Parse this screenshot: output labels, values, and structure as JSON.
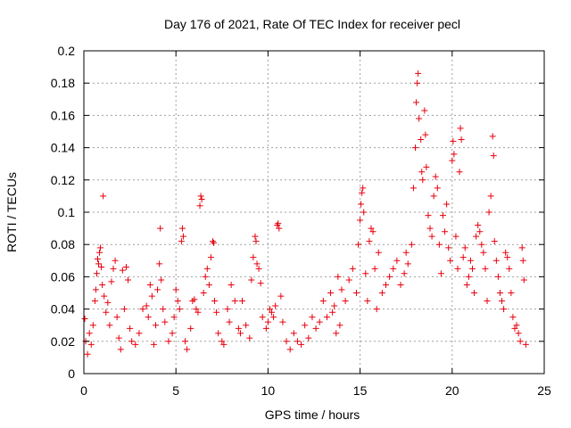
{
  "chart_data": {
    "type": "scatter",
    "title": "Day 176 of 2021, Rate Of TEC Index for receiver pecl",
    "xlabel": "GPS time / hours",
    "ylabel": "ROTI / TECUs",
    "xlim": [
      0,
      25
    ],
    "ylim": [
      0,
      0.2
    ],
    "x_ticks": [
      "0",
      "5",
      "10",
      "15",
      "20",
      "25"
    ],
    "y_ticks": [
      "0",
      "0.02",
      "0.04",
      "0.06",
      "0.08",
      "0.1",
      "0.12",
      "0.14",
      "0.16",
      "0.18",
      "0.2"
    ],
    "x_tick_values": [
      0,
      5,
      10,
      15,
      20,
      25
    ],
    "y_tick_values": [
      0,
      0.02,
      0.04,
      0.06,
      0.08,
      0.1,
      0.12,
      0.14,
      0.16,
      0.18,
      0.2
    ],
    "grid": true,
    "marker": "plus",
    "marker_color": "#e8000b",
    "series": [
      {
        "points": [
          [
            0.05,
            0.034
          ],
          [
            0.1,
            0.02
          ],
          [
            0.2,
            0.012
          ],
          [
            0.3,
            0.025
          ],
          [
            0.4,
            0.018
          ],
          [
            0.5,
            0.03
          ],
          [
            0.6,
            0.045
          ],
          [
            0.65,
            0.052
          ],
          [
            0.7,
            0.062
          ],
          [
            0.75,
            0.071
          ],
          [
            0.8,
            0.068
          ],
          [
            0.85,
            0.075
          ],
          [
            0.9,
            0.078
          ],
          [
            0.95,
            0.066
          ],
          [
            1.0,
            0.055
          ],
          [
            1.05,
            0.11
          ],
          [
            1.1,
            0.048
          ],
          [
            1.2,
            0.038
          ],
          [
            1.3,
            0.044
          ],
          [
            1.4,
            0.03
          ],
          [
            1.5,
            0.057
          ],
          [
            1.6,
            0.065
          ],
          [
            1.7,
            0.07
          ],
          [
            1.8,
            0.035
          ],
          [
            1.9,
            0.022
          ],
          [
            2.0,
            0.015
          ],
          [
            2.1,
            0.064
          ],
          [
            2.2,
            0.04
          ],
          [
            2.3,
            0.066
          ],
          [
            2.4,
            0.058
          ],
          [
            2.5,
            0.028
          ],
          [
            2.6,
            0.02
          ],
          [
            2.8,
            0.018
          ],
          [
            3.0,
            0.025
          ],
          [
            3.2,
            0.04
          ],
          [
            3.4,
            0.042
          ],
          [
            3.5,
            0.035
          ],
          [
            3.6,
            0.055
          ],
          [
            3.7,
            0.048
          ],
          [
            3.8,
            0.018
          ],
          [
            3.9,
            0.03
          ],
          [
            4.0,
            0.052
          ],
          [
            4.1,
            0.068
          ],
          [
            4.15,
            0.09
          ],
          [
            4.2,
            0.058
          ],
          [
            4.3,
            0.04
          ],
          [
            4.4,
            0.032
          ],
          [
            4.6,
            0.02
          ],
          [
            4.8,
            0.025
          ],
          [
            4.9,
            0.035
          ],
          [
            5.0,
            0.052
          ],
          [
            5.1,
            0.045
          ],
          [
            5.2,
            0.04
          ],
          [
            5.3,
            0.082
          ],
          [
            5.35,
            0.09
          ],
          [
            5.4,
            0.085
          ],
          [
            5.5,
            0.02
          ],
          [
            5.6,
            0.015
          ],
          [
            5.8,
            0.028
          ],
          [
            5.9,
            0.045
          ],
          [
            6.0,
            0.046
          ],
          [
            6.1,
            0.04
          ],
          [
            6.2,
            0.038
          ],
          [
            6.3,
            0.104
          ],
          [
            6.35,
            0.11
          ],
          [
            6.4,
            0.108
          ],
          [
            6.5,
            0.05
          ],
          [
            6.6,
            0.06
          ],
          [
            6.7,
            0.065
          ],
          [
            6.8,
            0.055
          ],
          [
            6.9,
            0.072
          ],
          [
            7.0,
            0.082
          ],
          [
            7.05,
            0.081
          ],
          [
            7.1,
            0.045
          ],
          [
            7.2,
            0.038
          ],
          [
            7.3,
            0.025
          ],
          [
            7.5,
            0.02
          ],
          [
            7.6,
            0.018
          ],
          [
            7.8,
            0.04
          ],
          [
            7.9,
            0.032
          ],
          [
            8.0,
            0.055
          ],
          [
            8.2,
            0.045
          ],
          [
            8.4,
            0.028
          ],
          [
            8.5,
            0.025
          ],
          [
            8.6,
            0.045
          ],
          [
            8.8,
            0.03
          ],
          [
            9.0,
            0.022
          ],
          [
            9.1,
            0.058
          ],
          [
            9.2,
            0.072
          ],
          [
            9.3,
            0.085
          ],
          [
            9.35,
            0.082
          ],
          [
            9.4,
            0.068
          ],
          [
            9.5,
            0.065
          ],
          [
            9.6,
            0.056
          ],
          [
            9.7,
            0.035
          ],
          [
            9.9,
            0.028
          ],
          [
            10.0,
            0.032
          ],
          [
            10.1,
            0.04
          ],
          [
            10.2,
            0.038
          ],
          [
            10.3,
            0.035
          ],
          [
            10.4,
            0.042
          ],
          [
            10.5,
            0.092
          ],
          [
            10.55,
            0.093
          ],
          [
            10.6,
            0.09
          ],
          [
            10.7,
            0.048
          ],
          [
            10.8,
            0.032
          ],
          [
            11.0,
            0.02
          ],
          [
            11.2,
            0.015
          ],
          [
            11.4,
            0.025
          ],
          [
            11.6,
            0.02
          ],
          [
            11.8,
            0.018
          ],
          [
            12.0,
            0.03
          ],
          [
            12.2,
            0.022
          ],
          [
            12.4,
            0.035
          ],
          [
            12.6,
            0.028
          ],
          [
            12.8,
            0.032
          ],
          [
            13.0,
            0.045
          ],
          [
            13.2,
            0.035
          ],
          [
            13.4,
            0.05
          ],
          [
            13.5,
            0.038
          ],
          [
            13.6,
            0.042
          ],
          [
            13.7,
            0.025
          ],
          [
            13.8,
            0.06
          ],
          [
            13.9,
            0.03
          ],
          [
            14.0,
            0.052
          ],
          [
            14.2,
            0.045
          ],
          [
            14.4,
            0.058
          ],
          [
            14.6,
            0.065
          ],
          [
            14.8,
            0.05
          ],
          [
            14.9,
            0.08
          ],
          [
            15.0,
            0.095
          ],
          [
            15.05,
            0.105
          ],
          [
            15.1,
            0.112
          ],
          [
            15.15,
            0.115
          ],
          [
            15.2,
            0.1
          ],
          [
            15.3,
            0.062
          ],
          [
            15.4,
            0.045
          ],
          [
            15.5,
            0.082
          ],
          [
            15.6,
            0.09
          ],
          [
            15.7,
            0.088
          ],
          [
            15.8,
            0.065
          ],
          [
            15.9,
            0.04
          ],
          [
            16.0,
            0.075
          ],
          [
            16.2,
            0.05
          ],
          [
            16.4,
            0.055
          ],
          [
            16.6,
            0.06
          ],
          [
            16.8,
            0.065
          ],
          [
            17.0,
            0.07
          ],
          [
            17.2,
            0.055
          ],
          [
            17.4,
            0.062
          ],
          [
            17.5,
            0.075
          ],
          [
            17.6,
            0.068
          ],
          [
            17.8,
            0.08
          ],
          [
            17.9,
            0.115
          ],
          [
            18.0,
            0.14
          ],
          [
            18.05,
            0.168
          ],
          [
            18.1,
            0.18
          ],
          [
            18.15,
            0.186
          ],
          [
            18.2,
            0.158
          ],
          [
            18.3,
            0.145
          ],
          [
            18.35,
            0.125
          ],
          [
            18.4,
            0.12
          ],
          [
            18.5,
            0.163
          ],
          [
            18.55,
            0.148
          ],
          [
            18.6,
            0.128
          ],
          [
            18.7,
            0.098
          ],
          [
            18.8,
            0.09
          ],
          [
            18.9,
            0.085
          ],
          [
            19.0,
            0.11
          ],
          [
            19.1,
            0.122
          ],
          [
            19.2,
            0.115
          ],
          [
            19.3,
            0.08
          ],
          [
            19.4,
            0.062
          ],
          [
            19.5,
            0.098
          ],
          [
            19.6,
            0.088
          ],
          [
            19.7,
            0.105
          ],
          [
            19.8,
            0.078
          ],
          [
            19.9,
            0.07
          ],
          [
            20.0,
            0.132
          ],
          [
            20.05,
            0.144
          ],
          [
            20.1,
            0.136
          ],
          [
            20.2,
            0.085
          ],
          [
            20.3,
            0.065
          ],
          [
            20.4,
            0.125
          ],
          [
            20.45,
            0.152
          ],
          [
            20.5,
            0.145
          ],
          [
            20.6,
            0.072
          ],
          [
            20.7,
            0.078
          ],
          [
            20.8,
            0.055
          ],
          [
            20.9,
            0.06
          ],
          [
            21.0,
            0.07
          ],
          [
            21.1,
            0.065
          ],
          [
            21.2,
            0.05
          ],
          [
            21.3,
            0.085
          ],
          [
            21.4,
            0.092
          ],
          [
            21.5,
            0.088
          ],
          [
            21.6,
            0.08
          ],
          [
            21.7,
            0.075
          ],
          [
            21.8,
            0.065
          ],
          [
            21.9,
            0.045
          ],
          [
            22.0,
            0.1
          ],
          [
            22.1,
            0.11
          ],
          [
            22.2,
            0.147
          ],
          [
            22.25,
            0.135
          ],
          [
            22.3,
            0.082
          ],
          [
            22.4,
            0.07
          ],
          [
            22.5,
            0.06
          ],
          [
            22.6,
            0.05
          ],
          [
            22.7,
            0.045
          ],
          [
            22.8,
            0.04
          ],
          [
            22.9,
            0.075
          ],
          [
            23.0,
            0.072
          ],
          [
            23.1,
            0.065
          ],
          [
            23.2,
            0.05
          ],
          [
            23.3,
            0.035
          ],
          [
            23.4,
            0.028
          ],
          [
            23.5,
            0.03
          ],
          [
            23.6,
            0.025
          ],
          [
            23.7,
            0.02
          ],
          [
            23.8,
            0.078
          ],
          [
            23.85,
            0.07
          ],
          [
            23.9,
            0.058
          ],
          [
            24.0,
            0.018
          ]
        ]
      }
    ]
  }
}
